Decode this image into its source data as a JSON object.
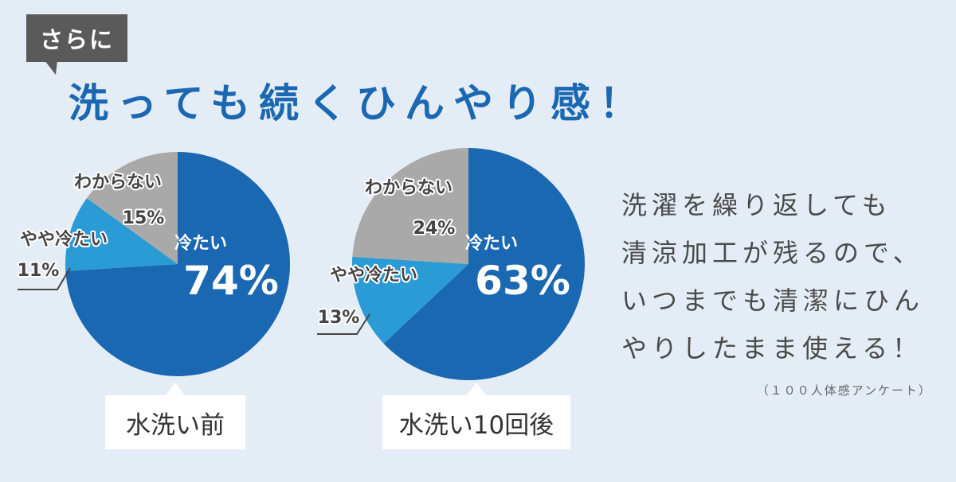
{
  "badge": "さらに",
  "headline": "洗っても続くひんやり感！",
  "chart_data": [
    {
      "type": "pie",
      "caption": "水洗い前",
      "slices": [
        {
          "label": "冷たい",
          "value": 74,
          "value_label": "74%",
          "color": "#1a67b2"
        },
        {
          "label": "やや冷たい",
          "value": 11,
          "value_label": "11%",
          "color": "#2b9bd6"
        },
        {
          "label": "わからない",
          "value": 15,
          "value_label": "15%",
          "color": "#a9a9a9"
        }
      ]
    },
    {
      "type": "pie",
      "caption": "水洗い10回後",
      "slices": [
        {
          "label": "冷たい",
          "value": 63,
          "value_label": "63%",
          "color": "#1a67b2"
        },
        {
          "label": "やや冷たい",
          "value": 13,
          "value_label": "13%",
          "color": "#2b9bd6"
        },
        {
          "label": "わからない",
          "value": 24,
          "value_label": "24%",
          "color": "#a9a9a9"
        }
      ]
    }
  ],
  "description": {
    "lines": [
      "洗濯を繰り返しても",
      "清涼加工が残るので、",
      "いつまでも清潔にひん",
      "やりしたまま使える！"
    ],
    "note": "（１００人体感アンケート）"
  }
}
